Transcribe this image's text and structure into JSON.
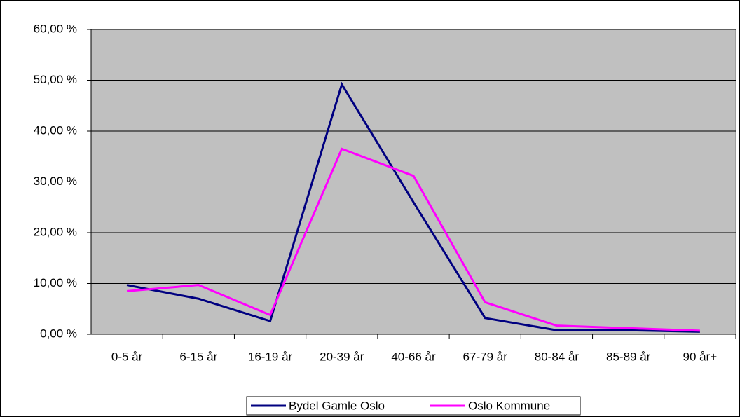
{
  "chart_data": {
    "type": "line",
    "categories": [
      "0-5 år",
      "6-15 år",
      "16-19 år",
      "20-39 år",
      "40-66 år",
      "67-79 år",
      "80-84 år",
      "85-89 år",
      "90 år+"
    ],
    "series": [
      {
        "name": "Bydel Gamle Oslo",
        "color": "#000080",
        "values": [
          9.7,
          7.0,
          2.6,
          49.2,
          26.0,
          3.2,
          0.8,
          0.8,
          0.5
        ]
      },
      {
        "name": "Oslo Kommune",
        "color": "#ff00ff",
        "values": [
          8.5,
          9.7,
          3.8,
          36.5,
          31.2,
          6.3,
          1.7,
          1.2,
          0.7
        ]
      }
    ],
    "ylim": [
      0,
      60
    ],
    "yticks": [
      {
        "value": 0,
        "label": "0,00 %"
      },
      {
        "value": 10,
        "label": "10,00 %"
      },
      {
        "value": 20,
        "label": "20,00 %"
      },
      {
        "value": 30,
        "label": "30,00 %"
      },
      {
        "value": 40,
        "label": "40,00 %"
      },
      {
        "value": 50,
        "label": "50,00 %"
      },
      {
        "value": 60,
        "label": "60,00 %"
      }
    ],
    "grid": true
  }
}
